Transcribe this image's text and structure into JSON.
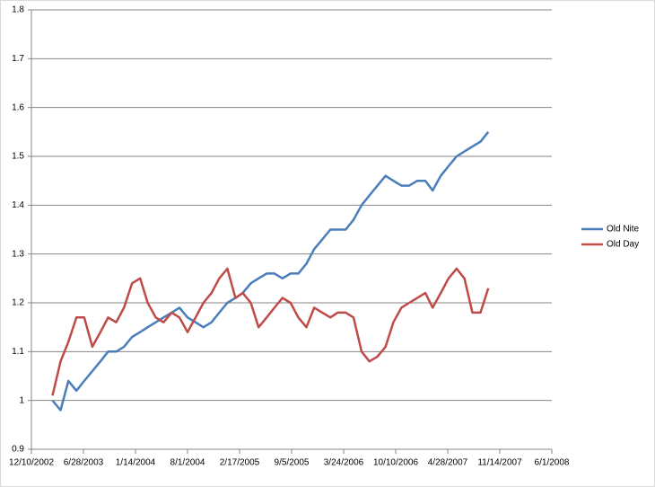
{
  "chart_data": {
    "type": "line",
    "x": [
      "2003-03-01",
      "2003-04-01",
      "2003-05-01",
      "2003-06-01",
      "2003-07-01",
      "2003-08-01",
      "2003-09-01",
      "2003-10-01",
      "2003-11-01",
      "2003-12-01",
      "2004-01-01",
      "2004-02-01",
      "2004-03-01",
      "2004-04-01",
      "2004-05-01",
      "2004-06-01",
      "2004-07-01",
      "2004-08-01",
      "2004-09-01",
      "2004-10-01",
      "2004-11-01",
      "2004-12-01",
      "2005-01-01",
      "2005-02-01",
      "2005-03-01",
      "2005-04-01",
      "2005-05-01",
      "2005-06-01",
      "2005-07-01",
      "2005-08-01",
      "2005-09-01",
      "2005-10-01",
      "2005-11-01",
      "2005-12-01",
      "2006-01-01",
      "2006-02-01",
      "2006-03-01",
      "2006-04-01",
      "2006-05-01",
      "2006-06-01",
      "2006-07-01",
      "2006-08-01",
      "2006-09-01",
      "2006-10-01",
      "2006-11-01",
      "2006-12-01",
      "2007-01-01",
      "2007-02-01",
      "2007-03-01",
      "2007-04-01",
      "2007-05-01",
      "2007-06-01",
      "2007-07-01",
      "2007-08-01",
      "2007-09-01",
      "2007-10-01"
    ],
    "series": [
      {
        "name": "Old Nite",
        "color": "#4a7ebb",
        "values": [
          1.0,
          0.98,
          1.04,
          1.02,
          1.04,
          1.06,
          1.08,
          1.1,
          1.1,
          1.11,
          1.13,
          1.14,
          1.15,
          1.16,
          1.17,
          1.18,
          1.19,
          1.17,
          1.16,
          1.15,
          1.16,
          1.18,
          1.2,
          1.21,
          1.22,
          1.24,
          1.25,
          1.26,
          1.26,
          1.25,
          1.26,
          1.26,
          1.28,
          1.31,
          1.33,
          1.35,
          1.35,
          1.35,
          1.37,
          1.4,
          1.42,
          1.44,
          1.46,
          1.45,
          1.44,
          1.44,
          1.45,
          1.45,
          1.43,
          1.46,
          1.48,
          1.5,
          1.51,
          1.52,
          1.53,
          1.55
        ]
      },
      {
        "name": "Old Day",
        "color": "#be4b48",
        "values": [
          1.01,
          1.08,
          1.12,
          1.17,
          1.17,
          1.11,
          1.14,
          1.17,
          1.16,
          1.19,
          1.24,
          1.25,
          1.2,
          1.17,
          1.16,
          1.18,
          1.17,
          1.14,
          1.17,
          1.2,
          1.22,
          1.25,
          1.27,
          1.21,
          1.22,
          1.2,
          1.15,
          1.17,
          1.19,
          1.21,
          1.2,
          1.17,
          1.15,
          1.19,
          1.18,
          1.17,
          1.18,
          1.18,
          1.17,
          1.1,
          1.08,
          1.09,
          1.11,
          1.16,
          1.19,
          1.2,
          1.21,
          1.22,
          1.19,
          1.22,
          1.25,
          1.27,
          1.25,
          1.18,
          1.18,
          1.23
        ]
      }
    ],
    "xlim": [
      "2002-12-10",
      "2008-06-01"
    ],
    "xticks": [
      {
        "value": "2002-12-10",
        "label": "12/10/2002"
      },
      {
        "value": "2003-06-28",
        "label": "6/28/2003"
      },
      {
        "value": "2004-01-14",
        "label": "1/14/2004"
      },
      {
        "value": "2004-08-01",
        "label": "8/1/2004"
      },
      {
        "value": "2005-02-17",
        "label": "2/17/2005"
      },
      {
        "value": "2005-09-05",
        "label": "9/5/2005"
      },
      {
        "value": "2006-03-24",
        "label": "3/24/2006"
      },
      {
        "value": "2006-10-10",
        "label": "10/10/2006"
      },
      {
        "value": "2007-04-28",
        "label": "4/28/2007"
      },
      {
        "value": "2007-11-14",
        "label": "11/14/2007"
      },
      {
        "value": "2008-06-01",
        "label": "6/1/2008"
      }
    ],
    "ylim": [
      0.9,
      1.8
    ],
    "yticks": [
      0.9,
      1,
      1.1,
      1.2,
      1.3,
      1.4,
      1.5,
      1.6,
      1.7,
      1.8
    ],
    "grid": true,
    "legend": "right"
  }
}
